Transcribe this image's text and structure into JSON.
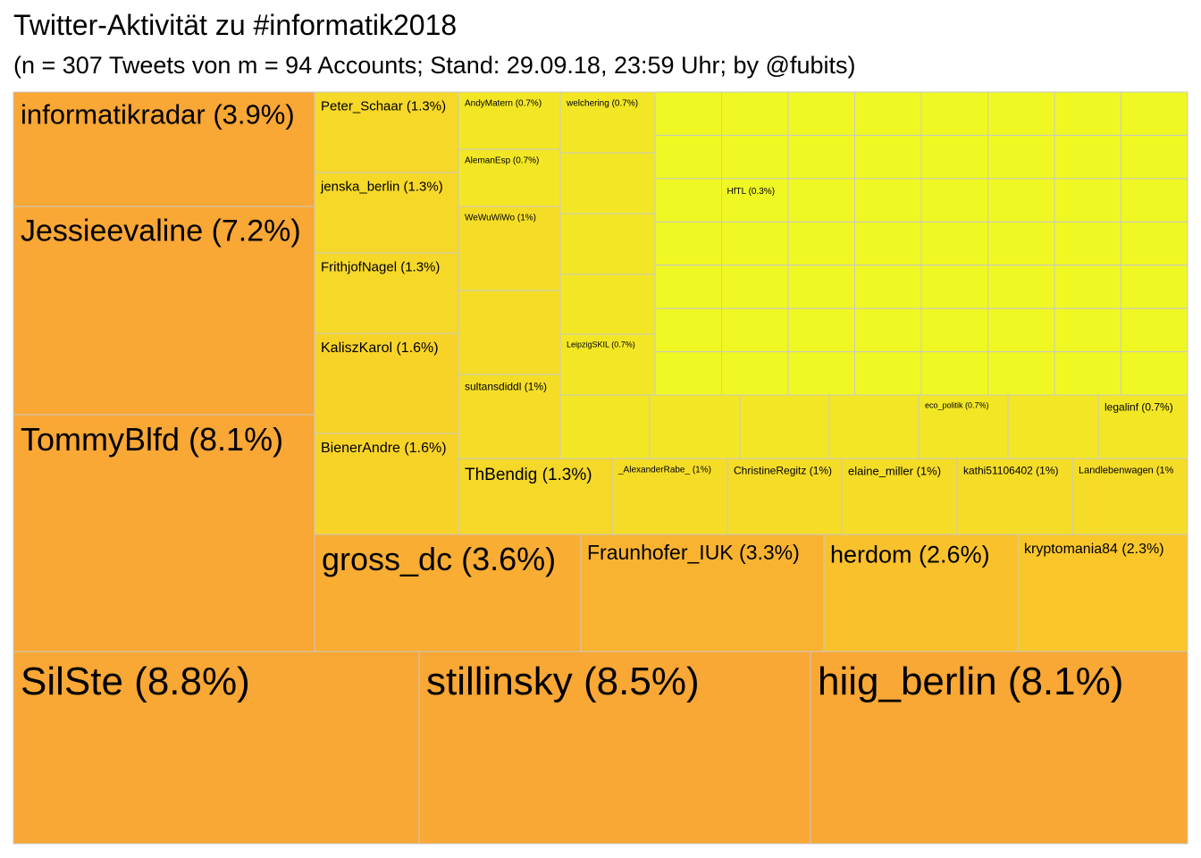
{
  "chart_data": {
    "type": "treemap",
    "title": "Twitter-Aktivität zu #informatik2018",
    "subtitle": "(n = 307 Tweets von m = 94 Accounts; Stand: 29.09.18, 23:59 Uhr; by @fubits)",
    "colors": {
      "high": "#f9a735",
      "mid": "#f9c72a",
      "low": "#f0f823",
      "border": "#c8c8c8"
    },
    "labeled_tiles": [
      {
        "name": "informatikradar",
        "pct": 3.9,
        "label": "informatikradar (3.9%)"
      },
      {
        "name": "Jessieevaline",
        "pct": 7.2,
        "label": "Jessieevaline (7.2%)"
      },
      {
        "name": "TommyBlfd",
        "pct": 8.1,
        "label": "TommyBlfd (8.1%)"
      },
      {
        "name": "SilSte",
        "pct": 8.8,
        "label": "SilSte (8.8%)"
      },
      {
        "name": "stillinsky",
        "pct": 8.5,
        "label": "stillinsky (8.5%)"
      },
      {
        "name": "hiig_berlin",
        "pct": 8.1,
        "label": "hiig_berlin (8.1%)"
      },
      {
        "name": "gross_dc",
        "pct": 3.6,
        "label": "gross_dc (3.6%)"
      },
      {
        "name": "Fraunhofer_IUK",
        "pct": 3.3,
        "label": "Fraunhofer_IUK (3.3%)"
      },
      {
        "name": "herdom",
        "pct": 2.6,
        "label": "herdom (2.6%)"
      },
      {
        "name": "kryptomania84",
        "pct": 2.3,
        "label": "kryptomania84 (2.3%)"
      },
      {
        "name": "Peter_Schaar",
        "pct": 1.3,
        "label": "Peter_Schaar (1.3%)"
      },
      {
        "name": "jenska_berlin",
        "pct": 1.3,
        "label": "jenska_berlin (1.3%)"
      },
      {
        "name": "FrithjofNagel",
        "pct": 1.3,
        "label": "FrithjofNagel (1.3%)"
      },
      {
        "name": "KaliszKarol",
        "pct": 1.6,
        "label": "KaliszKarol (1.6%)"
      },
      {
        "name": "BienerAndre",
        "pct": 1.6,
        "label": "BienerAndre (1.6%)"
      },
      {
        "name": "ThBendig",
        "pct": 1.3,
        "label": "ThBendig (1.3%)"
      },
      {
        "name": "_AlexanderRabe_",
        "pct": 1,
        "label": "_AlexanderRabe_ (1%)"
      },
      {
        "name": "ChristineRegitz",
        "pct": 1,
        "label": "ChristineRegitz (1%)"
      },
      {
        "name": "elaine_miller",
        "pct": 1,
        "label": "elaine_miller (1%)"
      },
      {
        "name": "kathi51106402",
        "pct": 1,
        "label": "kathi51106402 (1%)"
      },
      {
        "name": "Landlebenwagen",
        "pct": 1,
        "label": "Landlebenwagen (1%"
      },
      {
        "name": "AndyMatern",
        "pct": 0.7,
        "label": "AndyMatern (0.7%)"
      },
      {
        "name": "welchering",
        "pct": 0.7,
        "label": "welchering (0.7%)"
      },
      {
        "name": "AlemanEsp",
        "pct": 0.7,
        "label": "AlemanEsp (0.7%)"
      },
      {
        "name": "WeWuWiWo",
        "pct": 1,
        "label": "WeWuWiWo (1%)"
      },
      {
        "name": "sultansdiddl",
        "pct": 1,
        "label": "sultansdiddl (1%)"
      },
      {
        "name": "LeipzigSKIL",
        "pct": 0.7,
        "label": "LeipzigSKIL (0.7%)"
      },
      {
        "name": "eco_politik",
        "pct": 0.7,
        "label": "eco_politik (0.7%)"
      },
      {
        "name": "legalinf",
        "pct": 0.7,
        "label": "legalinf (0.7%)"
      },
      {
        "name": "HfTL",
        "pct": 0.3,
        "label": "HfTL (0.3%)"
      }
    ]
  }
}
